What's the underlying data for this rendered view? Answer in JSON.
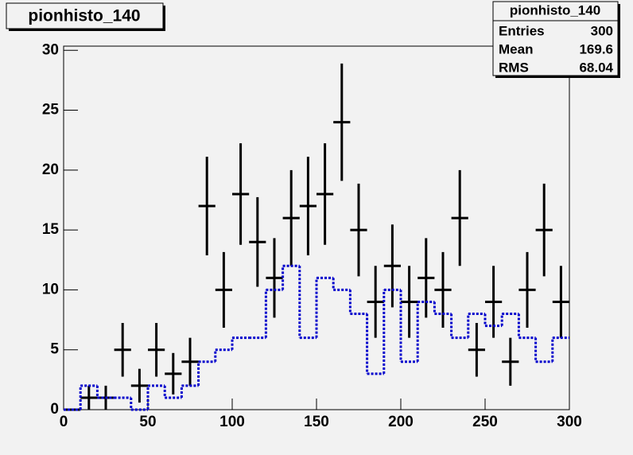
{
  "chart_data": {
    "type": "histogram",
    "title": "pionhisto_140",
    "bins": [
      0,
      10,
      20,
      30,
      40,
      50,
      60,
      70,
      80,
      90,
      100,
      110,
      120,
      130,
      140,
      150,
      160,
      170,
      180,
      190,
      200,
      210,
      220,
      230,
      240,
      250,
      260,
      270,
      280,
      290,
      300
    ],
    "series": [
      {
        "color": "#000000",
        "style": "errorbars",
        "values": [
          0,
          1,
          1,
          5,
          2,
          5,
          3,
          4,
          17,
          10,
          18,
          14,
          11,
          16,
          17,
          18,
          24,
          15,
          9,
          12,
          9,
          11,
          10,
          16,
          5,
          9,
          4,
          10,
          15,
          9
        ],
        "errors": [
          0,
          1,
          1,
          2.24,
          1.41,
          2.24,
          1.73,
          2,
          4.12,
          3.16,
          4.24,
          3.74,
          3.32,
          4,
          4.12,
          4.24,
          4.9,
          3.87,
          3,
          3.46,
          3,
          3.32,
          3.16,
          4,
          2.24,
          3,
          2,
          3.16,
          3.87,
          3
        ]
      },
      {
        "color": "#0000cc",
        "style": "dotted-step",
        "values": [
          0,
          2,
          1,
          1,
          0,
          2,
          1,
          2,
          4,
          5,
          6,
          6,
          10,
          12,
          6,
          11,
          10,
          8,
          3,
          10,
          4,
          9,
          8,
          6,
          8,
          7,
          8,
          6,
          4,
          6
        ]
      }
    ],
    "xlim": [
      0,
      300
    ],
    "xticks": [
      0,
      50,
      100,
      150,
      200,
      250,
      300
    ],
    "ylim": [
      0,
      30.35
    ],
    "yticks": [
      0,
      5,
      10,
      15,
      20,
      25,
      30
    ],
    "stats": {
      "title": "pionhisto_140",
      "rows": [
        [
          "Entries",
          "300"
        ],
        [
          "Mean",
          "169.6"
        ],
        [
          "RMS",
          "68.04"
        ]
      ]
    }
  }
}
